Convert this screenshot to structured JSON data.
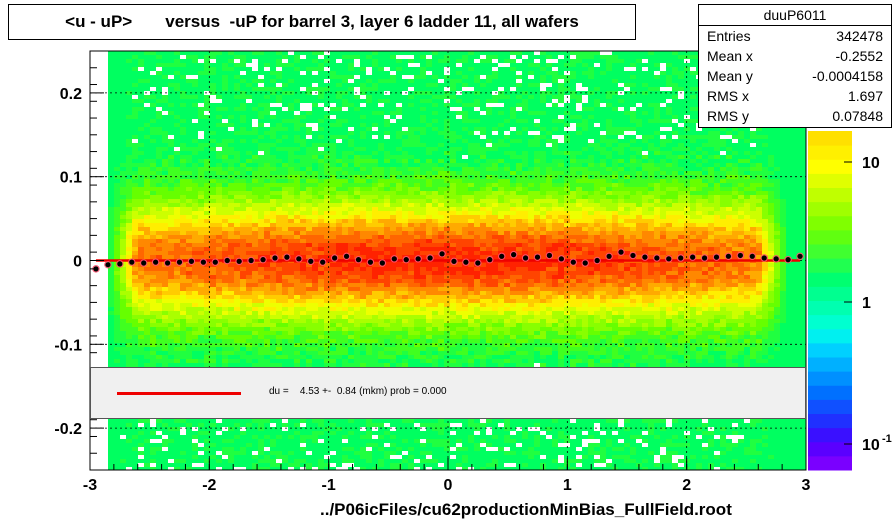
{
  "title": "<u - uP>       versus  -uP for barrel 3, layer 6 ladder 11, all wafers",
  "stats": {
    "name": "duuP6011",
    "rows": [
      {
        "label": "Entries",
        "value": "342478"
      },
      {
        "label": "Mean x",
        "value": "-0.2552"
      },
      {
        "label": "Mean y",
        "value": "-0.0004158"
      },
      {
        "label": "RMS x",
        "value": "1.697"
      },
      {
        "label": "RMS y",
        "value": "0.07848"
      }
    ]
  },
  "legend": {
    "text": "du =    4.53 +-  0.84 (mkm) prob = 0.000",
    "line_color": "#ee0000"
  },
  "footer": "../P06icFiles/cu62productionMinBias_FullField.root",
  "colorbar": {
    "tick_labels": [
      "10",
      "1",
      "10"
    ],
    "exponent": "-1"
  },
  "chart_data": {
    "type": "heatmap",
    "xlim": [
      -3,
      3
    ],
    "ylim": [
      -0.25,
      0.25
    ],
    "x_ticks": [
      -3,
      -2,
      -1,
      0,
      1,
      2,
      3
    ],
    "x_tick_labels": [
      "-3",
      "-2",
      "-1",
      "0",
      "1",
      "2",
      "3"
    ],
    "y_ticks": [
      -0.2,
      -0.1,
      0,
      0.1,
      0.2
    ],
    "y_tick_labels": [
      "-0.2",
      "-0.1",
      "0",
      "0.1",
      "0.2"
    ],
    "grid": true,
    "z_scale": "log",
    "profile_points": {
      "x": [
        -2.95,
        -2.85,
        -2.75,
        -2.65,
        -2.55,
        -2.45,
        -2.35,
        -2.25,
        -2.15,
        -2.05,
        -1.95,
        -1.85,
        -1.75,
        -1.65,
        -1.55,
        -1.45,
        -1.35,
        -1.25,
        -1.15,
        -1.05,
        -0.95,
        -0.85,
        -0.75,
        -0.65,
        -0.55,
        -0.45,
        -0.35,
        -0.25,
        -0.15,
        -0.05,
        0.05,
        0.15,
        0.25,
        0.35,
        0.45,
        0.55,
        0.65,
        0.75,
        0.85,
        0.95,
        1.05,
        1.15,
        1.25,
        1.35,
        1.45,
        1.55,
        1.65,
        1.75,
        1.85,
        1.95,
        2.05,
        2.15,
        2.25,
        2.35,
        2.45,
        2.55,
        2.65,
        2.75,
        2.85,
        2.95
      ],
      "y": [
        -0.01,
        -0.005,
        -0.004,
        -0.002,
        -0.003,
        -0.002,
        -0.003,
        -0.002,
        -0.001,
        -0.002,
        -0.002,
        0.0,
        -0.001,
        0.0,
        0.001,
        0.003,
        0.004,
        0.002,
        -0.001,
        -0.002,
        0.003,
        0.005,
        0.001,
        -0.002,
        -0.003,
        0.002,
        0.001,
        0.002,
        0.003,
        0.008,
        -0.001,
        -0.002,
        -0.003,
        0.001,
        0.005,
        0.007,
        0.003,
        0.004,
        0.006,
        0.002,
        -0.002,
        -0.003,
        0.0,
        0.005,
        0.01,
        0.006,
        0.004,
        0.003,
        0.002,
        0.003,
        0.004,
        0.003,
        0.004,
        0.005,
        0.006,
        0.005,
        0.003,
        0.002,
        0.001,
        0.005
      ]
    },
    "fit_line": {
      "y": 0.0
    }
  }
}
